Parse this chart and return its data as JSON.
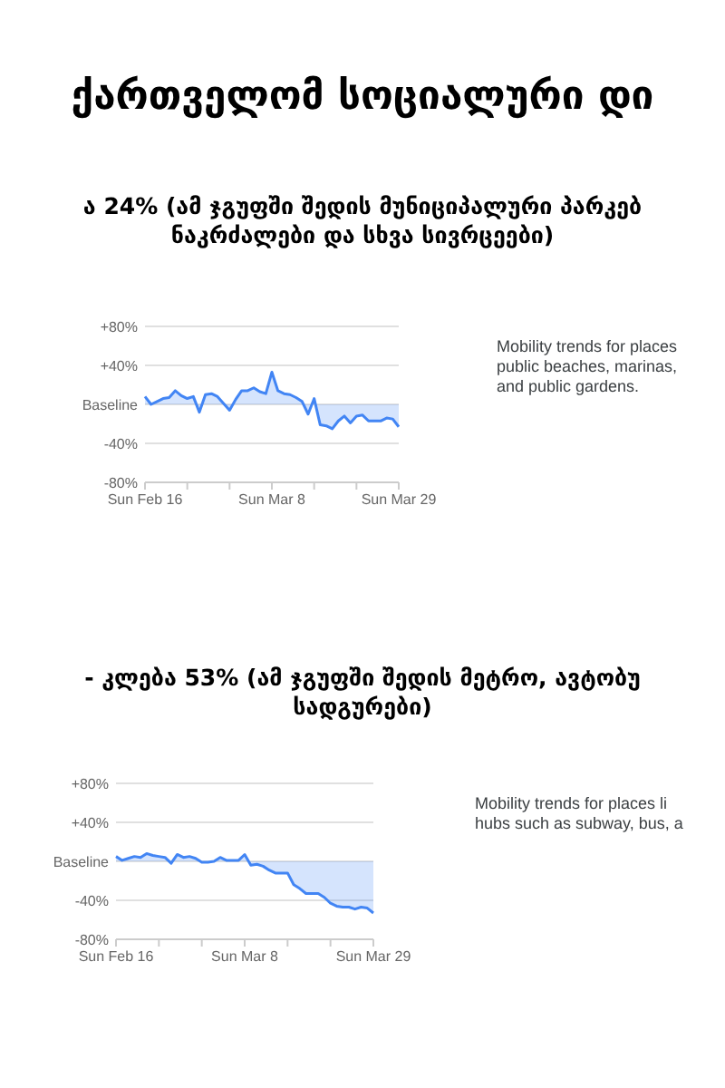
{
  "chart_data": [
    {
      "type": "area",
      "title": "ქართველომ სოციალური დი",
      "subtitle": "ა 24% (ამ ჯგუფში შედის მუნიციპალური პარკებ\nნაკრძალები და სხვა სივრცეები)",
      "annotations": [
        "Mobility trends for places\npublic beaches, marinas,\nand public gardens."
      ],
      "x": [
        "--02-16",
        "--02-17",
        "--02-18",
        "--02-19",
        "--02-20",
        "--02-21",
        "--02-22",
        "--02-23",
        "--02-24",
        "--02-25",
        "--02-26",
        "--02-27",
        "--02-28",
        "--02-29",
        "--03-01",
        "--03-02",
        "--03-03",
        "--03-04",
        "--03-05",
        "--03-06",
        "--03-07",
        "--03-08",
        "--03-09",
        "--03-10",
        "--03-11",
        "--03-12",
        "--03-13",
        "--03-14",
        "--03-15",
        "--03-16",
        "--03-17",
        "--03-18",
        "--03-19",
        "--03-20",
        "--03-21",
        "--03-22",
        "--03-23",
        "--03-24",
        "--03-25",
        "--03-26",
        "--03-27",
        "--03-28",
        "--03-29"
      ],
      "series": [
        {
          "color": "#4285f4",
          "values": [
            8,
            0,
            3,
            6,
            7,
            14,
            9,
            6,
            8,
            -8,
            10,
            11,
            8,
            1,
            -6,
            5,
            14,
            14,
            17,
            13,
            11,
            33,
            14,
            11,
            10,
            7,
            3,
            -10,
            6,
            -21,
            -22,
            -25,
            -17,
            -12,
            -19,
            -12,
            -11,
            -17,
            -17,
            -17,
            -14,
            -15,
            -23
          ]
        }
      ],
      "xlim": [
        "--02-16",
        "--03-29"
      ],
      "xticks": [
        {
          "value": "--02-16",
          "label": "Sun Feb 16"
        },
        {
          "value": "--02-23",
          "label": null
        },
        {
          "value": "--03-01",
          "label": null
        },
        {
          "value": "--03-08",
          "label": "Sun Mar 8"
        },
        {
          "value": "--03-15",
          "label": null
        },
        {
          "value": "--03-22",
          "label": null
        },
        {
          "value": "--03-29",
          "label": "Sun Mar 29"
        }
      ],
      "ylim": [
        -80,
        80
      ],
      "yticks": [
        {
          "value": -80,
          "label": "-80%"
        },
        {
          "value": -40,
          "label": "-40%"
        },
        {
          "value": 0,
          "label": "Baseline"
        },
        {
          "value": 40,
          "label": "+40%"
        },
        {
          "value": 80,
          "label": "+80%"
        }
      ],
      "grid": "y"
    },
    {
      "type": "area",
      "title": "- კლება 53% (ამ ჯგუფში შედის მეტრო, ავტობუ\nსადგურები)",
      "annotations": [
        "Mobility trends for places li\nhubs such as subway, bus, a"
      ],
      "x": [
        "--02-16",
        "--02-17",
        "--02-18",
        "--02-19",
        "--02-20",
        "--02-21",
        "--02-22",
        "--02-23",
        "--02-24",
        "--02-25",
        "--02-26",
        "--02-27",
        "--02-28",
        "--02-29",
        "--03-01",
        "--03-02",
        "--03-03",
        "--03-04",
        "--03-05",
        "--03-06",
        "--03-07",
        "--03-08",
        "--03-09",
        "--03-10",
        "--03-11",
        "--03-12",
        "--03-13",
        "--03-14",
        "--03-15",
        "--03-16",
        "--03-17",
        "--03-18",
        "--03-19",
        "--03-20",
        "--03-21",
        "--03-22",
        "--03-23",
        "--03-24",
        "--03-25",
        "--03-26",
        "--03-27",
        "--03-28",
        "--03-29"
      ],
      "series": [
        {
          "color": "#4285f4",
          "values": [
            5,
            1,
            3,
            5,
            4,
            8,
            6,
            5,
            4,
            -2,
            7,
            4,
            5,
            3,
            -1,
            -1,
            0,
            4,
            1,
            1,
            1,
            7,
            -4,
            -3,
            -5,
            -9,
            -12,
            -12,
            -12,
            -24,
            -28,
            -33,
            -33,
            -33,
            -37,
            -43,
            -46,
            -47,
            -47,
            -49,
            -47,
            -48,
            -53
          ]
        }
      ],
      "xlim": [
        "--02-16",
        "--03-29"
      ],
      "xticks": [
        {
          "value": "--02-16",
          "label": "Sun Feb 16"
        },
        {
          "value": "--02-23",
          "label": null
        },
        {
          "value": "--03-01",
          "label": null
        },
        {
          "value": "--03-08",
          "label": "Sun Mar 8"
        },
        {
          "value": "--03-15",
          "label": null
        },
        {
          "value": "--03-22",
          "label": null
        },
        {
          "value": "--03-29",
          "label": "Sun Mar 29"
        }
      ],
      "ylim": [
        -80,
        80
      ],
      "yticks": [
        {
          "value": -80,
          "label": "-80%"
        },
        {
          "value": -40,
          "label": "-40%"
        },
        {
          "value": 0,
          "label": "Baseline"
        },
        {
          "value": 40,
          "label": "+40%"
        },
        {
          "value": 80,
          "label": "+80%"
        }
      ],
      "grid": "y"
    }
  ]
}
